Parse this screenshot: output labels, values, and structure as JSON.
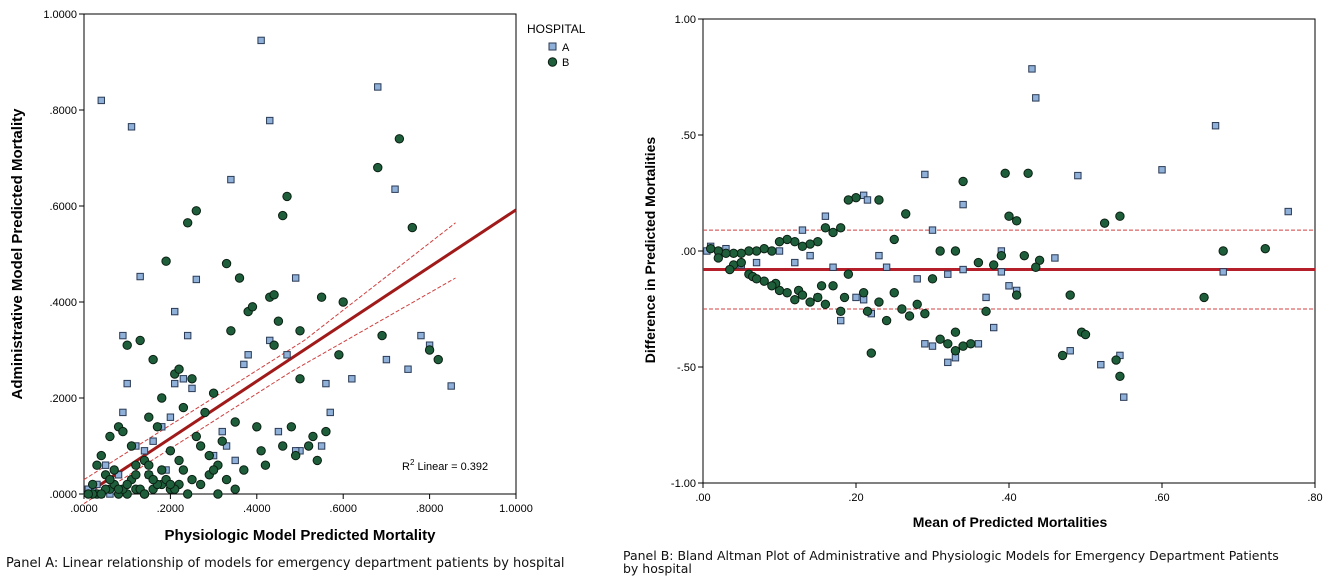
{
  "chart_data": [
    {
      "type": "scatter",
      "xlabel": "Physiologic Model Predicted Mortality",
      "ylabel": "Administrative Model Predicted Mortality",
      "x_ticks": [
        ".0000",
        ".2000",
        ".4000",
        ".6000",
        ".8000",
        "1.0000"
      ],
      "y_ticks": [
        ".0000",
        ".2000",
        ".4000",
        ".6000",
        ".8000",
        "1.0000"
      ],
      "xlim": [
        0,
        1
      ],
      "ylim": [
        0,
        1
      ],
      "grid": false,
      "legend": {
        "title": "HOSPITAL",
        "placement": "top-right-outside",
        "entries": [
          "A",
          "B"
        ]
      },
      "annotation": {
        "r2_prefix": "R",
        "r2_sup": "2",
        "r2_suffix": " Linear = 0.392"
      },
      "fit_line": {
        "x": [
          0,
          1
        ],
        "y": [
          -0.003,
          0.592
        ]
      },
      "ci_upper": {
        "x": [
          0,
          0.51,
          0.86
        ],
        "y": [
          0.03,
          0.32,
          0.565
        ]
      },
      "ci_lower": {
        "x": [
          0,
          0.48,
          0.86
        ],
        "y": [
          -0.02,
          0.255,
          0.45
        ]
      },
      "colors": {
        "A": "#8fb0d8",
        "B": "#1e5e3a",
        "fit": "#a01a1a"
      },
      "series": [
        {
          "name": "A",
          "x": [
            0.04,
            0.11,
            0.41,
            0.68,
            0.72,
            0.34,
            0.43,
            0.13,
            0.21,
            0.26,
            0.49,
            0.78,
            0.85,
            0.09,
            0.1,
            0.09,
            0.24,
            0.38,
            0.23,
            0.37,
            0.47,
            0.56,
            0.62,
            0.7,
            0.75,
            0.8,
            0.57,
            0.55,
            0.5,
            0.3,
            0.18,
            0.12,
            0.05,
            0.03,
            0.15,
            0.35,
            0.14,
            0.06,
            0.02,
            0.2,
            0.43,
            0.33,
            0.25,
            0.16,
            0.08,
            0.19,
            0.49,
            0.21,
            0.32,
            0.45,
            0.04,
            0.01
          ],
          "y": [
            0.82,
            0.765,
            0.945,
            0.848,
            0.635,
            0.655,
            0.778,
            0.453,
            0.38,
            0.447,
            0.45,
            0.33,
            0.225,
            0.33,
            0.23,
            0.17,
            0.33,
            0.29,
            0.24,
            0.27,
            0.29,
            0.23,
            0.24,
            0.28,
            0.26,
            0.31,
            0.17,
            0.1,
            0.09,
            0.08,
            0.14,
            0.1,
            0.06,
            0.02,
            0.04,
            0.07,
            0.09,
            0.0,
            0.01,
            0.16,
            0.32,
            0.1,
            0.22,
            0.11,
            0.04,
            0.05,
            0.09,
            0.23,
            0.13,
            0.13,
            0.0,
            0.01
          ]
        },
        {
          "name": "B",
          "x": [
            0.73,
            0.68,
            0.76,
            0.47,
            0.46,
            0.26,
            0.24,
            0.19,
            0.33,
            0.36,
            0.38,
            0.39,
            0.43,
            0.44,
            0.45,
            0.5,
            0.55,
            0.6,
            0.59,
            0.69,
            0.8,
            0.82,
            0.13,
            0.16,
            0.18,
            0.21,
            0.22,
            0.23,
            0.25,
            0.28,
            0.3,
            0.34,
            0.4,
            0.41,
            0.48,
            0.5,
            0.52,
            0.54,
            0.56,
            0.1,
            0.08,
            0.06,
            0.04,
            0.03,
            0.02,
            0.05,
            0.07,
            0.09,
            0.11,
            0.12,
            0.14,
            0.15,
            0.17,
            0.2,
            0.26,
            0.27,
            0.29,
            0.31,
            0.32,
            0.35,
            0.37,
            0.42,
            0.46,
            0.49,
            0.53,
            0.44,
            0.1,
            0.12,
            0.14,
            0.16,
            0.18,
            0.2,
            0.22,
            0.24,
            0.06,
            0.08,
            0.03,
            0.05,
            0.07,
            0.09,
            0.11,
            0.13,
            0.15,
            0.17,
            0.19,
            0.21,
            0.23,
            0.25,
            0.27,
            0.29,
            0.31,
            0.33,
            0.35,
            0.2,
            0.18,
            0.16,
            0.14,
            0.12,
            0.1,
            0.08,
            0.06,
            0.04,
            0.02,
            0.01,
            0.15,
            0.22,
            0.3
          ],
          "y": [
            0.74,
            0.68,
            0.555,
            0.62,
            0.58,
            0.59,
            0.565,
            0.485,
            0.48,
            0.45,
            0.38,
            0.39,
            0.41,
            0.415,
            0.36,
            0.34,
            0.41,
            0.4,
            0.29,
            0.33,
            0.3,
            0.28,
            0.32,
            0.28,
            0.2,
            0.25,
            0.26,
            0.18,
            0.24,
            0.17,
            0.21,
            0.34,
            0.14,
            0.09,
            0.14,
            0.24,
            0.1,
            0.07,
            0.13,
            0.31,
            0.14,
            0.12,
            0.08,
            0.06,
            0.02,
            0.04,
            0.05,
            0.13,
            0.1,
            0.06,
            0.07,
            0.16,
            0.14,
            0.09,
            0.12,
            0.1,
            0.08,
            0.06,
            0.11,
            0.15,
            0.05,
            0.06,
            0.1,
            0.08,
            0.12,
            0.31,
            0.0,
            0.01,
            0.0,
            0.01,
            0.02,
            0.01,
            0.02,
            0.0,
            0.01,
            0.0,
            0.0,
            0.01,
            0.02,
            0.01,
            0.03,
            0.01,
            0.04,
            0.02,
            0.03,
            0.01,
            0.05,
            0.03,
            0.02,
            0.04,
            0.0,
            0.03,
            0.01,
            0.02,
            0.05,
            0.03,
            0.0,
            0.04,
            0.02,
            0.01,
            0.03,
            0.0,
            0.0,
            0.0,
            0.06,
            0.07,
            0.05
          ]
        }
      ]
    },
    {
      "type": "scatter",
      "xlabel": "Mean of Predicted Mortalities",
      "ylabel": "Difference in Predicted Mortalities",
      "x_ticks": [
        ".00",
        ".20",
        ".40",
        ".60",
        ".80"
      ],
      "y_ticks": [
        "1.00",
        ".50",
        ".00",
        "-.50",
        "-1.00"
      ],
      "xlim": [
        0,
        0.8
      ],
      "ylim": [
        -1,
        1
      ],
      "grid": false,
      "mean_line": -0.08,
      "upper_limit": 0.09,
      "lower_limit": -0.25,
      "colors": {
        "A": "#8fb0d8",
        "B": "#1e5e3a",
        "mean": "#b51f2a"
      },
      "series": [
        {
          "name": "A",
          "x": [
            0.43,
            0.435,
            0.67,
            0.6,
            0.49,
            0.29,
            0.34,
            0.3,
            0.21,
            0.215,
            0.16,
            0.13,
            0.765,
            0.68,
            0.52,
            0.55,
            0.545,
            0.38,
            0.39,
            0.4,
            0.48,
            0.36,
            0.37,
            0.33,
            0.34,
            0.32,
            0.32,
            0.3,
            0.29,
            0.28,
            0.24,
            0.23,
            0.22,
            0.21,
            0.2,
            0.18,
            0.17,
            0.15,
            0.14,
            0.12,
            0.1,
            0.07,
            0.05,
            0.03,
            0.02,
            0.01,
            0.005,
            0.39,
            0.41,
            0.46
          ],
          "y": [
            0.785,
            0.66,
            0.54,
            0.35,
            0.325,
            0.33,
            0.2,
            0.09,
            0.24,
            0.22,
            0.15,
            0.09,
            0.17,
            -0.09,
            -0.49,
            -0.63,
            -0.45,
            -0.33,
            -0.09,
            -0.15,
            -0.43,
            -0.4,
            -0.2,
            -0.46,
            -0.08,
            -0.48,
            -0.1,
            -0.41,
            -0.4,
            -0.12,
            -0.07,
            -0.02,
            -0.27,
            -0.21,
            -0.2,
            -0.3,
            -0.07,
            -0.2,
            -0.02,
            -0.05,
            0.0,
            -0.05,
            -0.06,
            0.01,
            0.0,
            0.02,
            0.0,
            0.0,
            -0.17,
            -0.03
          ]
        },
        {
          "name": "B",
          "x": [
            0.395,
            0.425,
            0.34,
            0.525,
            0.545,
            0.735,
            0.68,
            0.655,
            0.47,
            0.48,
            0.495,
            0.5,
            0.54,
            0.545,
            0.41,
            0.4,
            0.33,
            0.31,
            0.3,
            0.36,
            0.37,
            0.39,
            0.265,
            0.25,
            0.23,
            0.2,
            0.19,
            0.18,
            0.17,
            0.16,
            0.15,
            0.14,
            0.13,
            0.12,
            0.11,
            0.1,
            0.09,
            0.08,
            0.07,
            0.06,
            0.05,
            0.04,
            0.03,
            0.02,
            0.01,
            0.22,
            0.24,
            0.27,
            0.29,
            0.35,
            0.18,
            0.16,
            0.14,
            0.12,
            0.1,
            0.08,
            0.06,
            0.04,
            0.02,
            0.215,
            0.185,
            0.155,
            0.125,
            0.095,
            0.065,
            0.035,
            0.05,
            0.07,
            0.09,
            0.11,
            0.13,
            0.15,
            0.17,
            0.19,
            0.21,
            0.23,
            0.26,
            0.28,
            0.31,
            0.33,
            0.38,
            0.41,
            0.44,
            0.33,
            0.34,
            0.32,
            0.42,
            0.435,
            0.25
          ],
          "y": [
            0.335,
            0.335,
            0.3,
            0.12,
            0.15,
            0.01,
            0.0,
            -0.2,
            -0.45,
            -0.19,
            -0.35,
            -0.36,
            -0.47,
            -0.54,
            0.13,
            0.15,
            0.0,
            0.0,
            -0.12,
            -0.05,
            -0.26,
            -0.02,
            0.16,
            0.05,
            0.22,
            0.23,
            0.22,
            0.1,
            0.08,
            0.1,
            0.04,
            0.03,
            0.02,
            0.04,
            0.05,
            0.04,
            0.0,
            0.01,
            0.0,
            0.0,
            -0.01,
            -0.01,
            -0.01,
            0.0,
            0.01,
            -0.44,
            -0.3,
            -0.28,
            -0.27,
            -0.4,
            -0.26,
            -0.23,
            -0.22,
            -0.21,
            -0.17,
            -0.13,
            -0.1,
            -0.06,
            -0.03,
            -0.26,
            -0.2,
            -0.15,
            -0.17,
            -0.14,
            -0.11,
            -0.08,
            -0.05,
            -0.12,
            -0.15,
            -0.18,
            -0.19,
            -0.2,
            -0.15,
            -0.1,
            -0.18,
            -0.22,
            -0.25,
            -0.23,
            -0.38,
            -0.35,
            -0.06,
            -0.19,
            -0.04,
            -0.43,
            -0.41,
            -0.4,
            -0.02,
            -0.07,
            -0.18
          ]
        }
      ]
    }
  ],
  "captions": {
    "a": "Panel A: Linear relationship of models for emergency department patients by hospital",
    "b_line1": "Panel B: Bland Altman Plot of Administrative and Physiologic Models for Emergency Department Patients",
    "b_line2": "by hospital"
  }
}
